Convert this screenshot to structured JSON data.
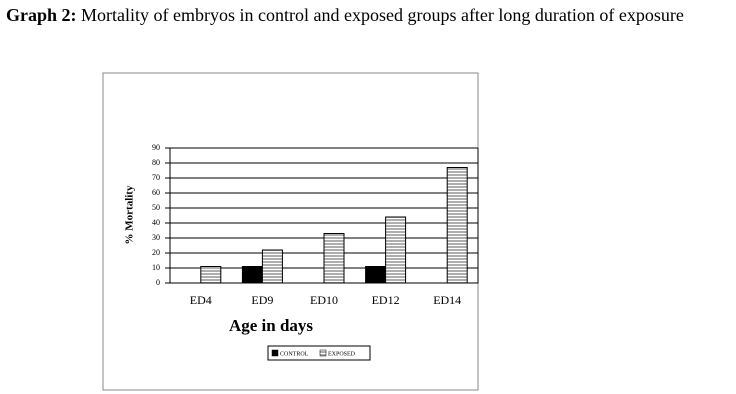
{
  "chart_data": {
    "type": "bar",
    "caption_label": "Graph 2:",
    "title": "Mortality of embryos in control and exposed groups after long duration of exposure",
    "x_label": "Age in days",
    "y_label": "% Mortality",
    "categories": [
      "ED4",
      "ED9",
      "ED10",
      "ED12",
      "ED14"
    ],
    "series": [
      {
        "name": "CONTROL",
        "color": "#000000",
        "values": [
          0,
          11,
          0,
          11,
          0
        ]
      },
      {
        "name": "EXPOSED",
        "color": "#9a9a9a",
        "values": [
          11,
          22,
          33,
          44,
          77
        ]
      }
    ],
    "ylim": [
      0,
      90
    ],
    "yticks": [
      0,
      10,
      20,
      30,
      40,
      50,
      60,
      70,
      80,
      90
    ],
    "grid": true,
    "legend": "bottom"
  }
}
